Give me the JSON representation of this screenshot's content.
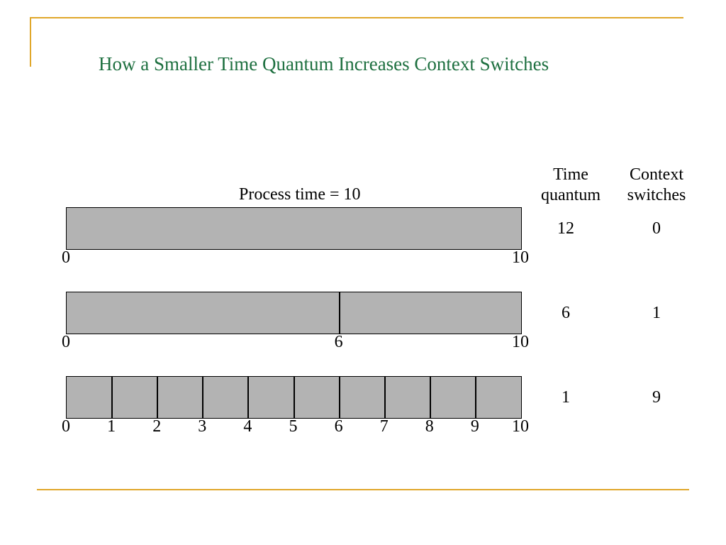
{
  "slide": {
    "title": "How a Smaller Time Quantum Increases Context Switches",
    "title_color": "#1e7040",
    "accent_color": "#e0a72a"
  },
  "diagram": {
    "process_label": "Process time = 10",
    "bar_color": "#b3b3b3",
    "headers": {
      "time_quantum": [
        "Time",
        "quantum"
      ],
      "context_switches": [
        "Context",
        "switches"
      ]
    },
    "rows": [
      {
        "time_quantum": "12",
        "context_switches": "0",
        "splits": [],
        "ticks": [
          "0",
          "10"
        ]
      },
      {
        "time_quantum": "6",
        "context_switches": "1",
        "splits": [
          6
        ],
        "ticks": [
          "0",
          "6",
          "10"
        ]
      },
      {
        "time_quantum": "1",
        "context_switches": "9",
        "splits": [
          1,
          2,
          3,
          4,
          5,
          6,
          7,
          8,
          9
        ],
        "ticks": [
          "0",
          "1",
          "2",
          "3",
          "4",
          "5",
          "6",
          "7",
          "8",
          "9",
          "10"
        ]
      }
    ]
  }
}
